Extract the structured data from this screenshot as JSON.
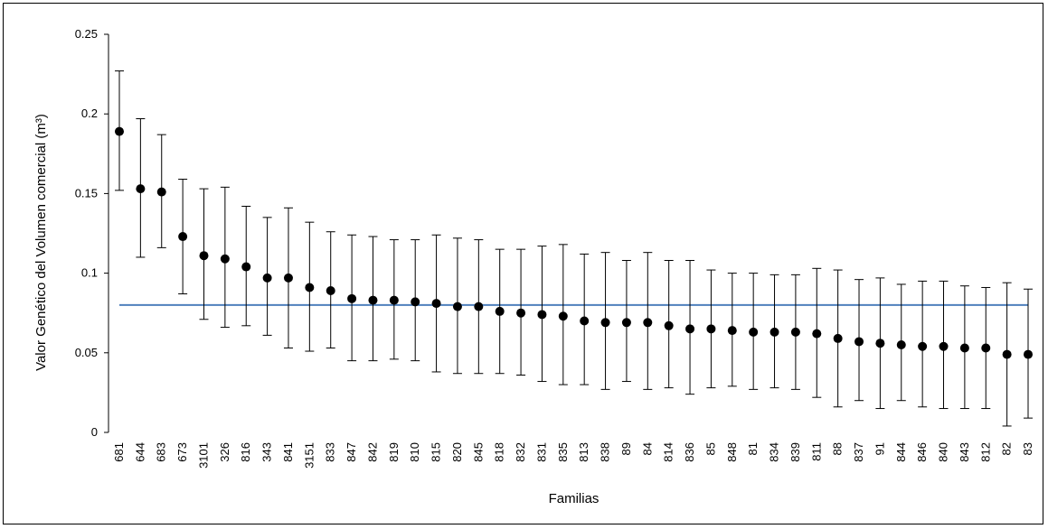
{
  "chart_data": {
    "type": "scatter",
    "title": "",
    "xlabel": "Familias",
    "ylabel": "Valor Genético del Volumen comercial (m³)",
    "ylim": [
      0,
      0.25
    ],
    "yticks": [
      0,
      0.05,
      0.1,
      0.15,
      0.2,
      0.25
    ],
    "ytick_labels": [
      "0",
      "0.05",
      "0.1",
      "0.15",
      "0.2",
      "0.25"
    ],
    "categories": [
      "681",
      "644",
      "683",
      "673",
      "3101",
      "326",
      "816",
      "343",
      "841",
      "3151",
      "833",
      "847",
      "842",
      "819",
      "810",
      "815",
      "820",
      "845",
      "818",
      "832",
      "831",
      "835",
      "813",
      "838",
      "89",
      "84",
      "814",
      "836",
      "85",
      "848",
      "81",
      "834",
      "839",
      "811",
      "88",
      "837",
      "91",
      "844",
      "846",
      "840",
      "843",
      "812",
      "82",
      "83"
    ],
    "values": [
      0.189,
      0.153,
      0.151,
      0.123,
      0.111,
      0.109,
      0.104,
      0.097,
      0.097,
      0.091,
      0.089,
      0.084,
      0.083,
      0.083,
      0.082,
      0.081,
      0.079,
      0.079,
      0.076,
      0.075,
      0.074,
      0.073,
      0.07,
      0.069,
      0.069,
      0.069,
      0.067,
      0.065,
      0.065,
      0.064,
      0.063,
      0.063,
      0.063,
      0.062,
      0.059,
      0.057,
      0.056,
      0.055,
      0.054,
      0.054,
      0.053,
      0.053,
      0.049,
      0.049
    ],
    "upper": [
      0.227,
      0.197,
      0.187,
      0.159,
      0.153,
      0.154,
      0.142,
      0.135,
      0.141,
      0.132,
      0.126,
      0.124,
      0.123,
      0.121,
      0.121,
      0.124,
      0.122,
      0.121,
      0.115,
      0.115,
      0.117,
      0.118,
      0.112,
      0.113,
      0.108,
      0.113,
      0.108,
      0.108,
      0.102,
      0.1,
      0.1,
      0.099,
      0.099,
      0.103,
      0.102,
      0.096,
      0.097,
      0.093,
      0.095,
      0.095,
      0.092,
      0.091,
      0.094,
      0.09
    ],
    "lower": [
      0.152,
      0.11,
      0.116,
      0.087,
      0.071,
      0.066,
      0.067,
      0.061,
      0.053,
      0.051,
      0.053,
      0.045,
      0.045,
      0.046,
      0.045,
      0.038,
      0.037,
      0.037,
      0.037,
      0.036,
      0.032,
      0.03,
      0.03,
      0.027,
      0.032,
      0.027,
      0.028,
      0.024,
      0.028,
      0.029,
      0.027,
      0.028,
      0.027,
      0.022,
      0.016,
      0.02,
      0.015,
      0.02,
      0.016,
      0.015,
      0.015,
      0.015,
      0.004,
      0.009
    ],
    "reference_line": {
      "y": 0.08,
      "color": "#4f81bd"
    },
    "marker_color": "#000000",
    "errorbar_color": "#000000"
  }
}
